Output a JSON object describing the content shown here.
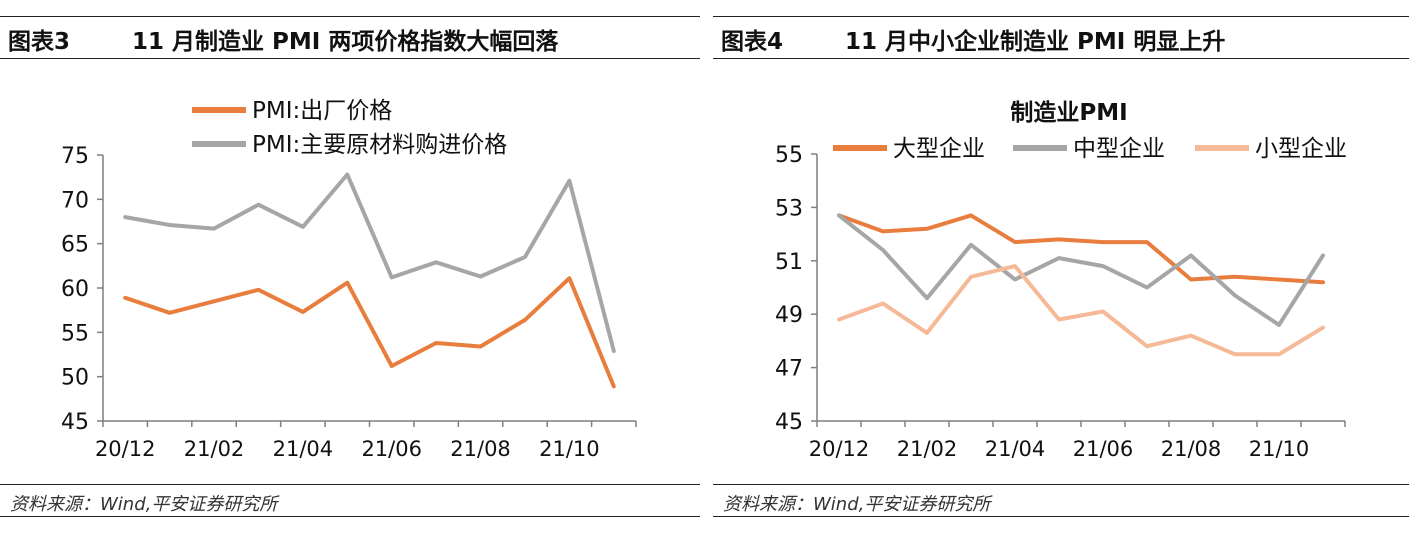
{
  "panels": [
    {
      "figure_label": "图表3",
      "figure_title": "11 月制造业 PMI 两项价格指数大幅回落",
      "source": "资料来源：Wind,平安证券研究所"
    },
    {
      "figure_label": "图表4",
      "figure_title": "11 月中小企业制造业 PMI 明显上升",
      "source": "资料来源：Wind,平安证券研究所"
    }
  ],
  "chart_data": [
    {
      "type": "line",
      "title": "",
      "x": [
        "20/12",
        "21/01",
        "21/02",
        "21/03",
        "21/04",
        "21/05",
        "21/06",
        "21/07",
        "21/08",
        "21/09",
        "21/10",
        "21/11"
      ],
      "xtick_labels": [
        "20/12",
        "21/02",
        "21/04",
        "21/06",
        "21/08",
        "21/10"
      ],
      "ylim": [
        45,
        75
      ],
      "yticks": [
        45,
        50,
        55,
        60,
        65,
        70,
        75
      ],
      "legend_placement": "top",
      "series": [
        {
          "name": "PMI:出厂价格",
          "color": "#E87D3E",
          "values": [
            58.9,
            57.2,
            58.5,
            59.8,
            57.3,
            60.6,
            51.2,
            53.8,
            53.4,
            56.4,
            61.1,
            48.9
          ]
        },
        {
          "name": "PMI:主要原材料购进价格",
          "color": "#A6A6A6",
          "values": [
            68.0,
            67.1,
            66.7,
            69.4,
            66.9,
            72.8,
            61.2,
            62.9,
            61.3,
            63.5,
            72.1,
            52.9
          ]
        }
      ]
    },
    {
      "type": "line",
      "title": "制造业PMI",
      "x": [
        "20/12",
        "21/01",
        "21/02",
        "21/03",
        "21/04",
        "21/05",
        "21/06",
        "21/07",
        "21/08",
        "21/09",
        "21/10",
        "21/11"
      ],
      "xtick_labels": [
        "20/12",
        "21/02",
        "21/04",
        "21/06",
        "21/08",
        "21/10"
      ],
      "ylim": [
        45,
        55
      ],
      "yticks": [
        45,
        47,
        49,
        51,
        53,
        55
      ],
      "legend_placement": "top",
      "series": [
        {
          "name": "大型企业",
          "color": "#E87D3E",
          "values": [
            52.7,
            52.1,
            52.2,
            52.7,
            51.7,
            51.8,
            51.7,
            51.7,
            50.3,
            50.4,
            50.3,
            50.2
          ]
        },
        {
          "name": "中型企业",
          "color": "#A6A6A6",
          "values": [
            52.7,
            51.4,
            49.6,
            51.6,
            50.3,
            51.1,
            50.8,
            50.0,
            51.2,
            49.7,
            48.6,
            51.2
          ]
        },
        {
          "name": "小型企业",
          "color": "#F5B998",
          "values": [
            48.8,
            49.4,
            48.3,
            50.4,
            50.8,
            48.8,
            49.1,
            47.8,
            48.2,
            47.5,
            47.5,
            48.5
          ]
        }
      ]
    }
  ]
}
